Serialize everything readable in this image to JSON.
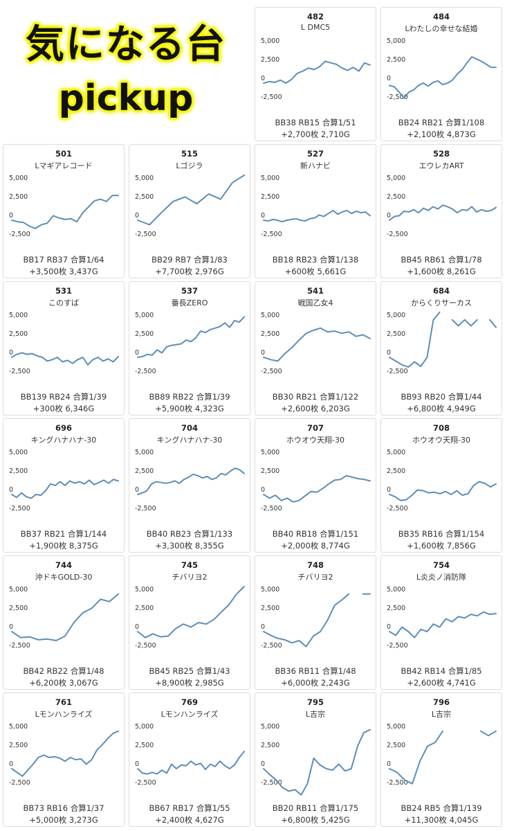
{
  "header": {
    "title": "気になる台",
    "subtitle": "pickup"
  },
  "colors": {
    "line": "#5b8db8",
    "title_glow": "#f3f300",
    "card_border": "#dcdcdc"
  },
  "y_ticks": [
    "5,000",
    "2,500",
    "0",
    "-2,500"
  ],
  "chart_data": [
    {
      "type": "line",
      "number": "482",
      "name": "L DMC5",
      "stats": "BB38 RB15 合算1/51",
      "result": "+2,700枚 2,710G",
      "ylim": [
        -3600,
        6000
      ],
      "values": [
        0,
        200,
        100,
        400,
        0,
        500,
        1300,
        1600,
        2000,
        1800,
        2200,
        2900,
        2700,
        2500,
        2000,
        1700,
        2100,
        1600,
        2700,
        2400
      ]
    },
    {
      "type": "line",
      "number": "484",
      "name": "Lわたしの幸せな結婚",
      "stats": "BB24 RB21 合算1/108",
      "result": "+2,100枚 4,873G",
      "ylim": [
        -3600,
        6000
      ],
      "values": [
        -300,
        -500,
        -1200,
        -2000,
        -1200,
        -900,
        -300,
        0,
        -400,
        100,
        300,
        -200,
        0,
        400,
        1200,
        1800,
        2700,
        3500,
        3200,
        2900,
        2500,
        2100,
        2100
      ]
    },
    {
      "type": "line",
      "number": "501",
      "name": "Lマギアレコード",
      "stats": "BB17 RB37 合算1/64",
      "result": "+3,500枚 3,437G",
      "ylim": [
        -3600,
        6000
      ],
      "values": [
        0,
        -200,
        -300,
        -800,
        -1100,
        -600,
        -400,
        600,
        300,
        100,
        200,
        -200,
        1000,
        1800,
        2600,
        2800,
        2500,
        3300,
        3300
      ]
    },
    {
      "type": "line",
      "number": "515",
      "name": "Lゴジラ",
      "stats": "BB29 RB7 合算1/83",
      "result": "+7,700枚 2,976G",
      "ylim": [
        -3600,
        6000
      ],
      "values": [
        0,
        -600,
        1000,
        2500,
        3100,
        2200,
        3500,
        2800,
        5000,
        6100
      ]
    },
    {
      "type": "line",
      "number": "527",
      "name": "新ハナビ",
      "stats": "BB18 RB23 合算1/138",
      "result": "+600枚 5,661G",
      "ylim": [
        -3600,
        6000
      ],
      "values": [
        0,
        -100,
        100,
        0,
        -200,
        0,
        100,
        200,
        0,
        -100,
        200,
        300,
        700,
        500,
        900,
        1300,
        800,
        1100,
        1300,
        900,
        1200,
        1000,
        1100,
        600
      ]
    },
    {
      "type": "line",
      "number": "528",
      "name": "エウレカART",
      "stats": "BB45 RB61 合算1/78",
      "result": "+1,600枚 8,261G",
      "ylim": [
        -3600,
        6000
      ],
      "values": [
        0,
        500,
        600,
        1200,
        1100,
        1400,
        1000,
        1600,
        1300,
        1800,
        1500,
        2000,
        1800,
        1500,
        1000,
        1400,
        1300,
        1800,
        1100,
        1400,
        1200,
        1300,
        1700
      ]
    },
    {
      "type": "line",
      "number": "531",
      "name": "このすば",
      "stats": "BB139 RB24 合算1/39",
      "result": "+300枚 6,346G",
      "ylim": [
        -3600,
        6000
      ],
      "values": [
        0,
        400,
        600,
        400,
        500,
        200,
        0,
        -500,
        -300,
        0,
        -600,
        -400,
        -800,
        -300,
        0,
        -1000,
        -300,
        0,
        -500,
        -200,
        -600,
        100
      ]
    },
    {
      "type": "line",
      "number": "537",
      "name": "番長ZERO",
      "stats": "BB89 RB22 合算1/39",
      "result": "+5,900枚 4,323G",
      "ylim": [
        -3600,
        6000
      ],
      "values": [
        0,
        100,
        400,
        300,
        1000,
        600,
        1400,
        1600,
        1700,
        1800,
        2300,
        2100,
        2600,
        3500,
        3300,
        3700,
        3900,
        4100,
        4600,
        4000,
        4900,
        4700,
        5400
      ]
    },
    {
      "type": "line",
      "number": "541",
      "name": "戦国乙女4",
      "stats": "BB30 RB21 合算1/122",
      "result": "+2,600枚 6,203G",
      "ylim": [
        -3600,
        6000
      ],
      "values": [
        0,
        -300,
        -500,
        500,
        1300,
        2300,
        3200,
        3600,
        3900,
        3400,
        3500,
        3200,
        3400,
        2800,
        3000,
        2500
      ]
    },
    {
      "type": "line",
      "number": "684",
      "name": "からくりサーカス",
      "stats": "BB93 RB20 合算1/44",
      "result": "+6,800枚 4,949G",
      "ylim": [
        -3600,
        6000
      ],
      "values": [
        0,
        -500,
        -1000,
        -1300,
        -600,
        -1200,
        0,
        5000,
        7000,
        null,
        5000,
        4200,
        5000,
        4200,
        5000,
        null,
        5000,
        4000
      ]
    },
    {
      "type": "line",
      "number": "696",
      "name": "キングハナハナ-30",
      "stats": "BB37 RB21 合算1/144",
      "result": "+1,900枚 8,375G",
      "ylim": [
        -3600,
        6000
      ],
      "values": [
        0,
        -400,
        200,
        -300,
        -500,
        0,
        -100,
        500,
        1400,
        1200,
        1700,
        1200,
        1800,
        1500,
        1700,
        1400,
        1900,
        1300,
        1600,
        1900,
        1500,
        2000,
        1800
      ]
    },
    {
      "type": "line",
      "number": "704",
      "name": "キングハナハナ-30",
      "stats": "BB40 RB23 合算1/133",
      "result": "+3,300枚 8,355G",
      "ylim": [
        -3600,
        6000
      ],
      "values": [
        0,
        200,
        500,
        1400,
        1700,
        1600,
        1500,
        1600,
        1800,
        1500,
        2000,
        2300,
        2700,
        2500,
        2200,
        2400,
        2000,
        2200,
        2800,
        2600,
        3100,
        3500,
        3300,
        2800
      ]
    },
    {
      "type": "line",
      "number": "707",
      "name": "ホウオウ天翔-30",
      "stats": "BB40 RB18 合算1/151",
      "result": "+2,000枚 8,774G",
      "ylim": [
        -3600,
        6000
      ],
      "values": [
        0,
        -500,
        -100,
        -800,
        -500,
        -1000,
        -800,
        -200,
        400,
        300,
        800,
        1400,
        1900,
        2000,
        2500,
        2300,
        2100,
        2000,
        1800
      ]
    },
    {
      "type": "line",
      "number": "708",
      "name": "ホウオウ天翔-30",
      "stats": "BB35 RB16 合算1/154",
      "result": "+1,600枚 7,856G",
      "ylim": [
        -3600,
        6000
      ],
      "values": [
        0,
        -300,
        -800,
        -700,
        -100,
        600,
        500,
        200,
        300,
        100,
        400,
        0,
        500,
        -100,
        100,
        1200,
        1700,
        1500,
        1000,
        1400
      ]
    },
    {
      "type": "line",
      "number": "744",
      "name": "沖ドキGOLD-30",
      "stats": "BB42 RB22 合算1/48",
      "result": "+6,200枚 3,067G",
      "ylim": [
        -3600,
        6000
      ],
      "values": [
        0,
        -800,
        -700,
        -1100,
        -1000,
        -1200,
        -600,
        1200,
        2500,
        3100,
        4300,
        4000,
        5000
      ]
    },
    {
      "type": "line",
      "number": "745",
      "name": "チバリヨ2",
      "stats": "BB45 RB25 合算1/43",
      "result": "+8,900枚 2,985G",
      "ylim": [
        -3600,
        6000
      ],
      "values": [
        0,
        -800,
        -300,
        -700,
        -600,
        400,
        1000,
        600,
        1200,
        1000,
        1600,
        2600,
        3600,
        5000,
        6000
      ]
    },
    {
      "type": "line",
      "number": "748",
      "name": "チバリヨ2",
      "stats": "BB36 RB11 合算1/48",
      "result": "+6,000枚 2,243G",
      "ylim": [
        -3600,
        6000
      ],
      "values": [
        0,
        -500,
        -900,
        -1100,
        -1500,
        -1200,
        -2000,
        -600,
        0,
        1500,
        3500,
        4200,
        5000,
        null,
        5000,
        5000
      ]
    },
    {
      "type": "line",
      "number": "754",
      "name": "L炎炎ノ消防隊",
      "stats": "BB42 RB14 合算1/85",
      "result": "+2,600枚 4,741G",
      "ylim": [
        -3600,
        6000
      ],
      "values": [
        0,
        -500,
        600,
        0,
        -800,
        300,
        0,
        1000,
        600,
        1700,
        1300,
        2000,
        1800,
        2300,
        2100,
        2600,
        2300,
        2400
      ]
    },
    {
      "type": "line",
      "number": "761",
      "name": "Lモンハンライズ",
      "stats": "BB73 RB16 合算1/37",
      "result": "+5,000枚 3,273G",
      "ylim": [
        -3600,
        6000
      ],
      "values": [
        0,
        -500,
        -1000,
        -200,
        600,
        1500,
        1800,
        1500,
        1600,
        1400,
        1000,
        1500,
        1200,
        1300,
        600,
        1200,
        2500,
        3200,
        4000,
        4700,
        5000
      ]
    },
    {
      "type": "line",
      "number": "769",
      "name": "Lモンハンライズ",
      "stats": "BB67 RB17 合算1/55",
      "result": "+2,400枚 4,627G",
      "ylim": [
        -3600,
        6000
      ],
      "values": [
        0,
        -600,
        -700,
        -500,
        -700,
        -200,
        -600,
        600,
        0,
        500,
        400,
        1000,
        500,
        700,
        -100,
        600,
        300,
        1000,
        400,
        0,
        500,
        1500,
        2300
      ]
    },
    {
      "type": "line",
      "number": "795",
      "name": "L吉宗",
      "stats": "BB20 RB11 合算1/175",
      "result": "+6,800枚 5,425G",
      "ylim": [
        -3600,
        6000
      ],
      "values": [
        0,
        -800,
        -1500,
        -2500,
        -3000,
        -2800,
        -3500,
        -2000,
        1400,
        500,
        0,
        -200,
        600,
        -300,
        0,
        3000,
        4800,
        5200
      ]
    },
    {
      "type": "line",
      "number": "796",
      "name": "L吉宗",
      "stats": "BB24 RB5 合算1/139",
      "result": "+11,300枚 4,045G",
      "ylim": [
        -3600,
        6000
      ],
      "values": [
        0,
        -500,
        -1500,
        -2000,
        1000,
        3000,
        3500,
        5000,
        null,
        null,
        null,
        null,
        5000,
        4400,
        5000
      ]
    }
  ]
}
